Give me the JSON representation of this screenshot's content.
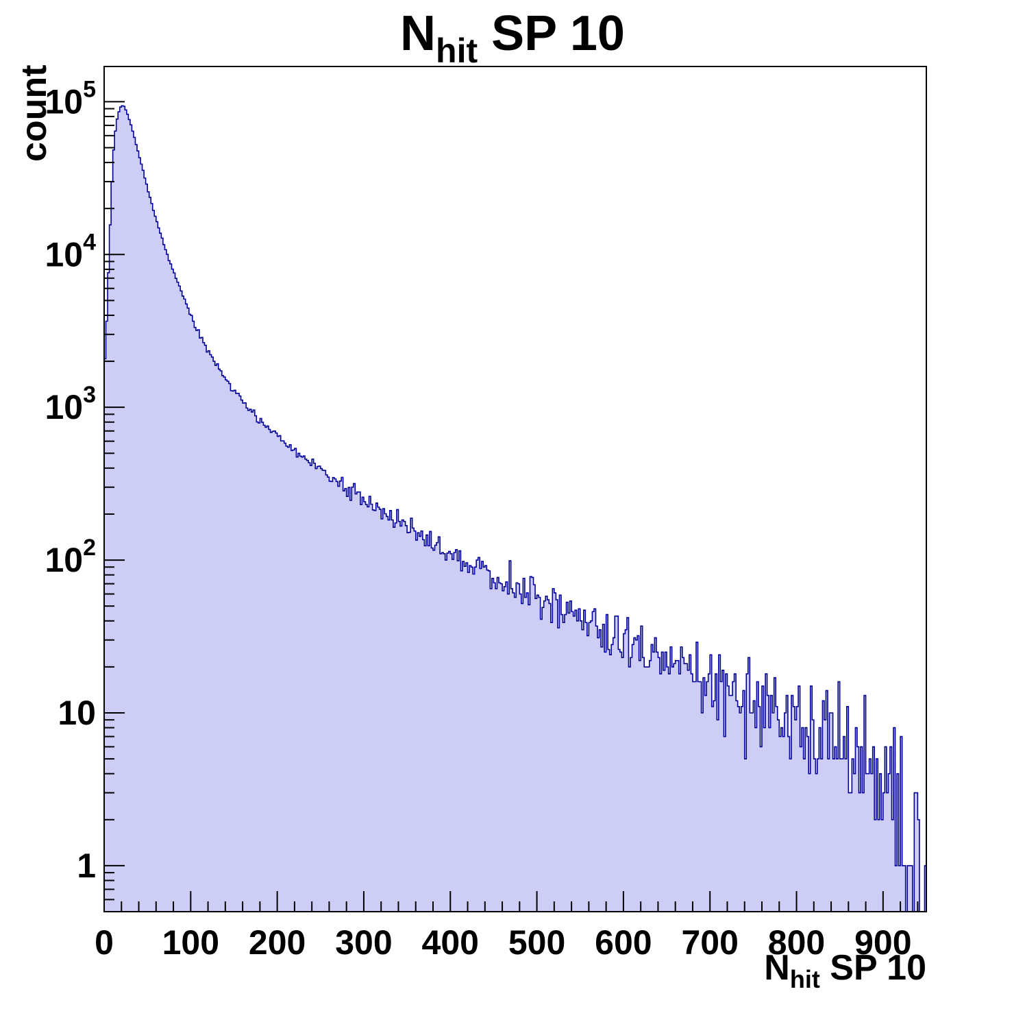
{
  "title": {
    "main": "N",
    "sub": "hit",
    "rest": " SP 10"
  },
  "y_axis": {
    "label": "count",
    "ticks": [
      {
        "value": 1,
        "base": "1"
      },
      {
        "value": 10,
        "base": "10"
      },
      {
        "value": 100,
        "base": "10",
        "exp": "2"
      },
      {
        "value": 1000,
        "base": "10",
        "exp": "3"
      },
      {
        "value": 10000,
        "base": "10",
        "exp": "4"
      },
      {
        "value": 100000,
        "base": "10",
        "exp": "5"
      }
    ]
  },
  "x_axis": {
    "label_main": "N",
    "label_sub": "hit",
    "label_rest": " SP 10",
    "ticks": [
      {
        "value": 0,
        "label": "0"
      },
      {
        "value": 100,
        "label": "100"
      },
      {
        "value": 200,
        "label": "200"
      },
      {
        "value": 300,
        "label": "300"
      },
      {
        "value": 400,
        "label": "400"
      },
      {
        "value": 500,
        "label": "500"
      },
      {
        "value": 600,
        "label": "600"
      },
      {
        "value": 700,
        "label": "700"
      },
      {
        "value": 800,
        "label": "800"
      },
      {
        "value": 900,
        "label": "900"
      }
    ],
    "minor_step": 20
  },
  "chart_data": {
    "type": "histogram",
    "title": "N_hit SP 10",
    "xlabel": "N_hit SP 10",
    "ylabel": "count",
    "x_range": [
      0,
      950
    ],
    "bin_width": 2,
    "y_scale": "log",
    "y_range": [
      0.5,
      170000
    ],
    "grid": false,
    "legend": "none",
    "fill_color": "#cdcdf6",
    "line_color": "#000099",
    "frame_color": "#000000",
    "seed": 20,
    "peak": {
      "x": 20,
      "count": 95000
    },
    "anchors": [
      [
        0,
        1700
      ],
      [
        2,
        2600
      ],
      [
        4,
        5200
      ],
      [
        6,
        11000
      ],
      [
        8,
        22000
      ],
      [
        10,
        40000
      ],
      [
        12,
        58000
      ],
      [
        14,
        72000
      ],
      [
        16,
        82000
      ],
      [
        18,
        90000
      ],
      [
        20,
        95000
      ],
      [
        23,
        93000
      ],
      [
        26,
        86000
      ],
      [
        30,
        74000
      ],
      [
        34,
        61000
      ],
      [
        38,
        50000
      ],
      [
        42,
        41000
      ],
      [
        46,
        33500
      ],
      [
        50,
        27500
      ],
      [
        55,
        21500
      ],
      [
        60,
        17000
      ],
      [
        65,
        13800
      ],
      [
        70,
        11200
      ],
      [
        75,
        9300
      ],
      [
        80,
        7800
      ],
      [
        85,
        6500
      ],
      [
        90,
        5500
      ],
      [
        95,
        4700
      ],
      [
        100,
        4000
      ],
      [
        110,
        3000
      ],
      [
        120,
        2350
      ],
      [
        130,
        1900
      ],
      [
        140,
        1560
      ],
      [
        150,
        1300
      ],
      [
        160,
        1100
      ],
      [
        170,
        950
      ],
      [
        180,
        830
      ],
      [
        190,
        730
      ],
      [
        200,
        640
      ],
      [
        210,
        575
      ],
      [
        220,
        520
      ],
      [
        230,
        470
      ],
      [
        240,
        430
      ],
      [
        250,
        390
      ],
      [
        260,
        355
      ],
      [
        270,
        325
      ],
      [
        280,
        295
      ],
      [
        290,
        270
      ],
      [
        300,
        248
      ],
      [
        310,
        228
      ],
      [
        320,
        210
      ],
      [
        330,
        193
      ],
      [
        340,
        178
      ],
      [
        350,
        164
      ],
      [
        360,
        152
      ],
      [
        370,
        140
      ],
      [
        380,
        130
      ],
      [
        390,
        120
      ],
      [
        400,
        112
      ],
      [
        410,
        104
      ],
      [
        420,
        97
      ],
      [
        430,
        90
      ],
      [
        440,
        84
      ],
      [
        450,
        78
      ],
      [
        460,
        73
      ],
      [
        470,
        68
      ],
      [
        480,
        64
      ],
      [
        490,
        60
      ],
      [
        500,
        56
      ],
      [
        510,
        52
      ],
      [
        520,
        49
      ],
      [
        530,
        46
      ],
      [
        540,
        43
      ],
      [
        550,
        40
      ],
      [
        560,
        38
      ],
      [
        570,
        35
      ],
      [
        580,
        33
      ],
      [
        590,
        31
      ],
      [
        600,
        29
      ],
      [
        610,
        27
      ],
      [
        620,
        26
      ],
      [
        630,
        24
      ],
      [
        640,
        23
      ],
      [
        650,
        21
      ],
      [
        660,
        20
      ],
      [
        670,
        19
      ],
      [
        680,
        18
      ],
      [
        690,
        17
      ],
      [
        700,
        16
      ],
      [
        710,
        15
      ],
      [
        720,
        14
      ],
      [
        730,
        13
      ],
      [
        740,
        12.5
      ],
      [
        750,
        12
      ],
      [
        760,
        11
      ],
      [
        770,
        10.5
      ],
      [
        780,
        10
      ],
      [
        790,
        9.5
      ],
      [
        800,
        9
      ],
      [
        810,
        8.5
      ],
      [
        820,
        8
      ],
      [
        830,
        7.5
      ],
      [
        840,
        7
      ],
      [
        850,
        6.5
      ],
      [
        860,
        6
      ],
      [
        870,
        5.5
      ],
      [
        880,
        5
      ],
      [
        890,
        4.5
      ],
      [
        900,
        4
      ],
      [
        910,
        3.2
      ],
      [
        920,
        2.4
      ],
      [
        925,
        1.8
      ],
      [
        930,
        1.2
      ],
      [
        935,
        0.9
      ],
      [
        940,
        0.7
      ],
      [
        945,
        0.6
      ],
      [
        950,
        0.5
      ]
    ]
  }
}
